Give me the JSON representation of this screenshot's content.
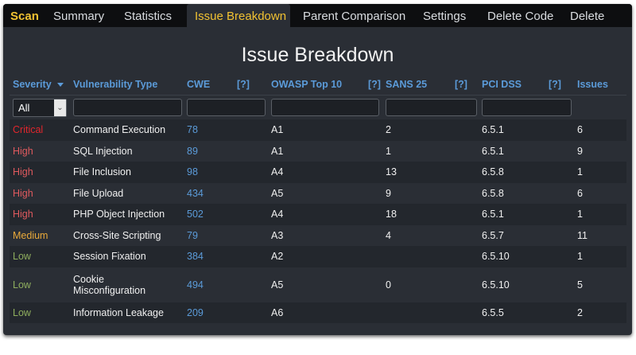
{
  "tabs": [
    {
      "label": "Scan",
      "brand": true
    },
    {
      "label": "Summary"
    },
    {
      "label": "Statistics"
    },
    {
      "label": "Issue Breakdown",
      "active": true
    },
    {
      "label": "Parent Comparison"
    },
    {
      "label": "Settings"
    },
    {
      "label": "Delete Code"
    },
    {
      "label": "Delete"
    }
  ],
  "page_title": "Issue Breakdown",
  "columns": {
    "severity": "Severity",
    "vulnerability_type": "Vulnerability Type",
    "cwe": "CWE",
    "owasp": "OWASP Top 10",
    "sans": "SANS 25",
    "pci": "PCI DSS",
    "issues": "Issues",
    "help": "[?]"
  },
  "filters": {
    "severity_selected": "All"
  },
  "colors": {
    "critical": "#e0262d",
    "high": "#e05a5e",
    "medium": "#e9a93a",
    "low": "#8fae5e",
    "link": "#5b9bd9",
    "accent": "#f1c232"
  },
  "rows": [
    {
      "severity": "Critical",
      "type": "Command Execution",
      "cwe": "78",
      "owasp": "A1",
      "sans": "2",
      "pci": "6.5.1",
      "issues": "6"
    },
    {
      "severity": "High",
      "type": "SQL Injection",
      "cwe": "89",
      "owasp": "A1",
      "sans": "1",
      "pci": "6.5.1",
      "issues": "9"
    },
    {
      "severity": "High",
      "type": "File Inclusion",
      "cwe": "98",
      "owasp": "A4",
      "sans": "13",
      "pci": "6.5.8",
      "issues": "1"
    },
    {
      "severity": "High",
      "type": "File Upload",
      "cwe": "434",
      "owasp": "A5",
      "sans": "9",
      "pci": "6.5.8",
      "issues": "6"
    },
    {
      "severity": "High",
      "type": "PHP Object Injection",
      "cwe": "502",
      "owasp": "A4",
      "sans": "18",
      "pci": "6.5.1",
      "issues": "1"
    },
    {
      "severity": "Medium",
      "type": "Cross-Site Scripting",
      "cwe": "79",
      "owasp": "A3",
      "sans": "4",
      "pci": "6.5.7",
      "issues": "11"
    },
    {
      "severity": "Low",
      "type": "Session Fixation",
      "cwe": "384",
      "owasp": "A2",
      "sans": "",
      "pci": "6.5.10",
      "issues": "1"
    },
    {
      "severity": "Low",
      "type": "Cookie Misconfiguration",
      "cwe": "494",
      "owasp": "A5",
      "sans": "0",
      "pci": "6.5.10",
      "issues": "5"
    },
    {
      "severity": "Low",
      "type": "Information Leakage",
      "cwe": "209",
      "owasp": "A6",
      "sans": "",
      "pci": "6.5.5",
      "issues": "2"
    }
  ]
}
